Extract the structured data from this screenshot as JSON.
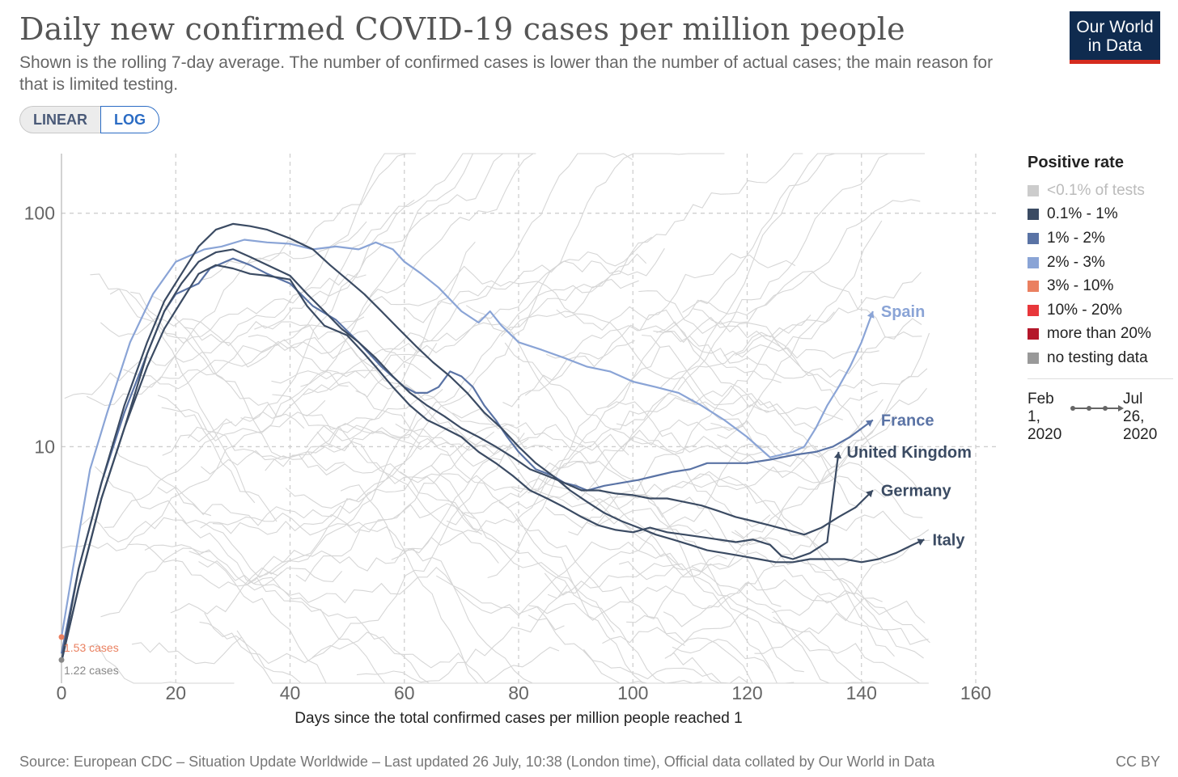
{
  "header": {
    "title": "Daily new confirmed COVID-19 cases per million people",
    "subtitle": "Shown is the rolling 7-day average. The number of confirmed cases is lower than the number of actual cases; the main reason for that is limited testing.",
    "logo_line1": "Our World",
    "logo_line2": "in Data"
  },
  "scale_toggle": {
    "linear_label": "LINEAR",
    "log_label": "LOG",
    "selected": "LOG"
  },
  "legend": {
    "title": "Positive rate",
    "items": [
      {
        "label": "<0.1% of tests",
        "color": "#cccccc"
      },
      {
        "label": "0.1% - 1%",
        "color": "#3b4b63"
      },
      {
        "label": "1% - 2%",
        "color": "#5a73a5"
      },
      {
        "label": "2% - 3%",
        "color": "#8aa4d6"
      },
      {
        "label": "3% - 10%",
        "color": "#ea8060"
      },
      {
        "label": "10% - 20%",
        "color": "#e8373b"
      },
      {
        "label": "more than 20%",
        "color": "#b4172a"
      },
      {
        "label": "no testing data",
        "color": "#999999"
      }
    ],
    "time_from": "Feb\n1,\n2020",
    "time_to": "Jul\n26,\n2020"
  },
  "chart_data": {
    "type": "line",
    "xlabel": "Days since the total confirmed cases per million people reached 1",
    "ylabel": "",
    "yscale": "log",
    "xlim": [
      0,
      160
    ],
    "ylim": [
      0.97,
      180
    ],
    "x_ticks": [
      0,
      20,
      40,
      60,
      80,
      100,
      120,
      140,
      160
    ],
    "y_ticks": [
      10,
      100
    ],
    "grid": true,
    "annotations": [
      {
        "text": "1.53 cases",
        "x": 0,
        "y": 1.53,
        "color": "#ea8060"
      },
      {
        "text": "1.22 cases",
        "x": 0,
        "y": 1.22,
        "color": "#888888"
      }
    ],
    "series": [
      {
        "name": "Spain",
        "color": "#8aa4d6",
        "points": [
          [
            0,
            1.53
          ],
          [
            2,
            3
          ],
          [
            5,
            8
          ],
          [
            8,
            14
          ],
          [
            12,
            28
          ],
          [
            16,
            45
          ],
          [
            20,
            62
          ],
          [
            25,
            70
          ],
          [
            28,
            72
          ],
          [
            32,
            77
          ],
          [
            36,
            75
          ],
          [
            40,
            74
          ],
          [
            44,
            70
          ],
          [
            48,
            72
          ],
          [
            52,
            70
          ],
          [
            55,
            75
          ],
          [
            58,
            70
          ],
          [
            60,
            62
          ],
          [
            63,
            55
          ],
          [
            66,
            48
          ],
          [
            70,
            38
          ],
          [
            73,
            34
          ],
          [
            75,
            38
          ],
          [
            77,
            33
          ],
          [
            80,
            28
          ],
          [
            84,
            26
          ],
          [
            88,
            24
          ],
          [
            92,
            22
          ],
          [
            96,
            21
          ],
          [
            100,
            19
          ],
          [
            104,
            18
          ],
          [
            108,
            17
          ],
          [
            112,
            15
          ],
          [
            116,
            13
          ],
          [
            120,
            11
          ],
          [
            124,
            9
          ],
          [
            128,
            9.5
          ],
          [
            130,
            10
          ],
          [
            132,
            12
          ],
          [
            134,
            15
          ],
          [
            136,
            18
          ],
          [
            138,
            22
          ],
          [
            140,
            28
          ],
          [
            142,
            38
          ]
        ]
      },
      {
        "name": "France",
        "color": "#5a73a5",
        "points": [
          [
            0,
            1.3
          ],
          [
            3,
            3
          ],
          [
            7,
            7
          ],
          [
            11,
            14
          ],
          [
            15,
            25
          ],
          [
            18,
            38
          ],
          [
            20,
            45
          ],
          [
            24,
            50
          ],
          [
            26,
            58
          ],
          [
            30,
            64
          ],
          [
            33,
            60
          ],
          [
            36,
            55
          ],
          [
            40,
            50
          ],
          [
            44,
            40
          ],
          [
            48,
            35
          ],
          [
            52,
            28
          ],
          [
            56,
            22
          ],
          [
            60,
            18
          ],
          [
            62,
            17
          ],
          [
            64,
            17
          ],
          [
            66,
            18
          ],
          [
            68,
            21
          ],
          [
            70,
            20
          ],
          [
            72,
            18
          ],
          [
            74,
            15
          ],
          [
            76,
            13
          ],
          [
            78,
            11
          ],
          [
            80,
            9.5
          ],
          [
            83,
            8
          ],
          [
            86,
            7.5
          ],
          [
            88,
            7
          ],
          [
            90,
            6.8
          ],
          [
            92,
            6.5
          ],
          [
            95,
            6.8
          ],
          [
            98,
            7
          ],
          [
            101,
            7.2
          ],
          [
            104,
            7.5
          ],
          [
            107,
            7.8
          ],
          [
            110,
            8
          ],
          [
            113,
            8.5
          ],
          [
            116,
            8.5
          ],
          [
            120,
            8.5
          ],
          [
            124,
            8.8
          ],
          [
            128,
            9.2
          ],
          [
            132,
            9.5
          ],
          [
            135,
            10
          ],
          [
            138,
            11
          ],
          [
            142,
            13
          ]
        ]
      },
      {
        "name": "United Kingdom",
        "color": "#3b4b63",
        "points": [
          [
            0,
            1.2
          ],
          [
            3,
            2.5
          ],
          [
            7,
            6
          ],
          [
            11,
            12
          ],
          [
            15,
            22
          ],
          [
            18,
            32
          ],
          [
            21,
            42
          ],
          [
            24,
            55
          ],
          [
            27,
            60
          ],
          [
            30,
            58
          ],
          [
            33,
            55
          ],
          [
            36,
            54
          ],
          [
            40,
            52
          ],
          [
            43,
            40
          ],
          [
            46,
            33
          ],
          [
            50,
            30
          ],
          [
            53,
            25
          ],
          [
            55,
            22
          ],
          [
            58,
            18
          ],
          [
            61,
            15
          ],
          [
            64,
            13
          ],
          [
            67,
            12
          ],
          [
            70,
            11
          ],
          [
            73,
            9.5
          ],
          [
            76,
            8.5
          ],
          [
            79,
            7.5
          ],
          [
            82,
            6.5
          ],
          [
            85,
            6
          ],
          [
            88,
            5.5
          ],
          [
            91,
            5
          ],
          [
            94,
            4.6
          ],
          [
            97,
            4.4
          ],
          [
            100,
            4.3
          ],
          [
            103,
            4.5
          ],
          [
            106,
            4.3
          ],
          [
            109,
            4.2
          ],
          [
            112,
            4.1
          ],
          [
            115,
            4
          ],
          [
            118,
            3.9
          ],
          [
            121,
            4
          ],
          [
            124,
            3.8
          ],
          [
            126,
            3.4
          ],
          [
            128,
            3.3
          ],
          [
            131,
            3.5
          ],
          [
            134,
            3.9
          ],
          [
            136,
            9.5
          ]
        ]
      },
      {
        "name": "Germany",
        "color": "#3b4b63",
        "points": [
          [
            0,
            1.2
          ],
          [
            3,
            2.5
          ],
          [
            7,
            6
          ],
          [
            11,
            12
          ],
          [
            15,
            25
          ],
          [
            18,
            38
          ],
          [
            21,
            50
          ],
          [
            24,
            62
          ],
          [
            27,
            68
          ],
          [
            30,
            70
          ],
          [
            33,
            65
          ],
          [
            36,
            60
          ],
          [
            40,
            54
          ],
          [
            43,
            45
          ],
          [
            46,
            38
          ],
          [
            49,
            32
          ],
          [
            52,
            28
          ],
          [
            55,
            24
          ],
          [
            58,
            20
          ],
          [
            61,
            17
          ],
          [
            64,
            15
          ],
          [
            67,
            13.5
          ],
          [
            70,
            12
          ],
          [
            73,
            11
          ],
          [
            76,
            10
          ],
          [
            79,
            9
          ],
          [
            82,
            8
          ],
          [
            85,
            7.5
          ],
          [
            88,
            7
          ],
          [
            91,
            6.5
          ],
          [
            94,
            6.5
          ],
          [
            97,
            6.3
          ],
          [
            100,
            6.2
          ],
          [
            103,
            6
          ],
          [
            106,
            6
          ],
          [
            109,
            5.8
          ],
          [
            112,
            5.6
          ],
          [
            115,
            5.3
          ],
          [
            118,
            5
          ],
          [
            121,
            4.8
          ],
          [
            124,
            4.6
          ],
          [
            127,
            4.4
          ],
          [
            130,
            4.2
          ],
          [
            133,
            4.5
          ],
          [
            136,
            5
          ],
          [
            139,
            5.5
          ],
          [
            142,
            6.5
          ]
        ]
      },
      {
        "name": "Italy",
        "color": "#3b4b63",
        "points": [
          [
            0,
            1.2
          ],
          [
            3,
            3
          ],
          [
            7,
            7
          ],
          [
            11,
            15
          ],
          [
            15,
            28
          ],
          [
            18,
            42
          ],
          [
            21,
            55
          ],
          [
            24,
            72
          ],
          [
            27,
            85
          ],
          [
            30,
            90
          ],
          [
            33,
            88
          ],
          [
            36,
            85
          ],
          [
            40,
            78
          ],
          [
            44,
            70
          ],
          [
            47,
            60
          ],
          [
            50,
            52
          ],
          [
            53,
            45
          ],
          [
            56,
            38
          ],
          [
            59,
            32
          ],
          [
            62,
            27
          ],
          [
            65,
            23
          ],
          [
            68,
            20
          ],
          [
            71,
            17
          ],
          [
            74,
            14
          ],
          [
            77,
            12
          ],
          [
            80,
            10
          ],
          [
            83,
            8.5
          ],
          [
            86,
            7.5
          ],
          [
            89,
            6.5
          ],
          [
            92,
            5.8
          ],
          [
            95,
            5.2
          ],
          [
            98,
            4.8
          ],
          [
            101,
            4.5
          ],
          [
            104,
            4.2
          ],
          [
            107,
            4
          ],
          [
            110,
            3.8
          ],
          [
            113,
            3.6
          ],
          [
            116,
            3.5
          ],
          [
            119,
            3.4
          ],
          [
            122,
            3.3
          ],
          [
            125,
            3.2
          ],
          [
            128,
            3.2
          ],
          [
            131,
            3.3
          ],
          [
            134,
            3.3
          ],
          [
            137,
            3.3
          ],
          [
            140,
            3.2
          ],
          [
            143,
            3.3
          ],
          [
            146,
            3.5
          ],
          [
            149,
            3.8
          ],
          [
            151,
            4
          ]
        ]
      }
    ],
    "highlight_labels": [
      {
        "text": "Spain",
        "color": "#8aa4d6"
      },
      {
        "text": "France",
        "color": "#5a73a5"
      },
      {
        "text": "United Kingdom",
        "color": "#3b4b63"
      },
      {
        "text": "Germany",
        "color": "#3b4b63"
      },
      {
        "text": "Italy",
        "color": "#3b4b63"
      }
    ]
  },
  "footer": {
    "source": "Source: European CDC – Situation Update Worldwide – Last updated 26 July, 10:38 (London time), Official data collated by Our World in Data",
    "license": "CC BY"
  }
}
